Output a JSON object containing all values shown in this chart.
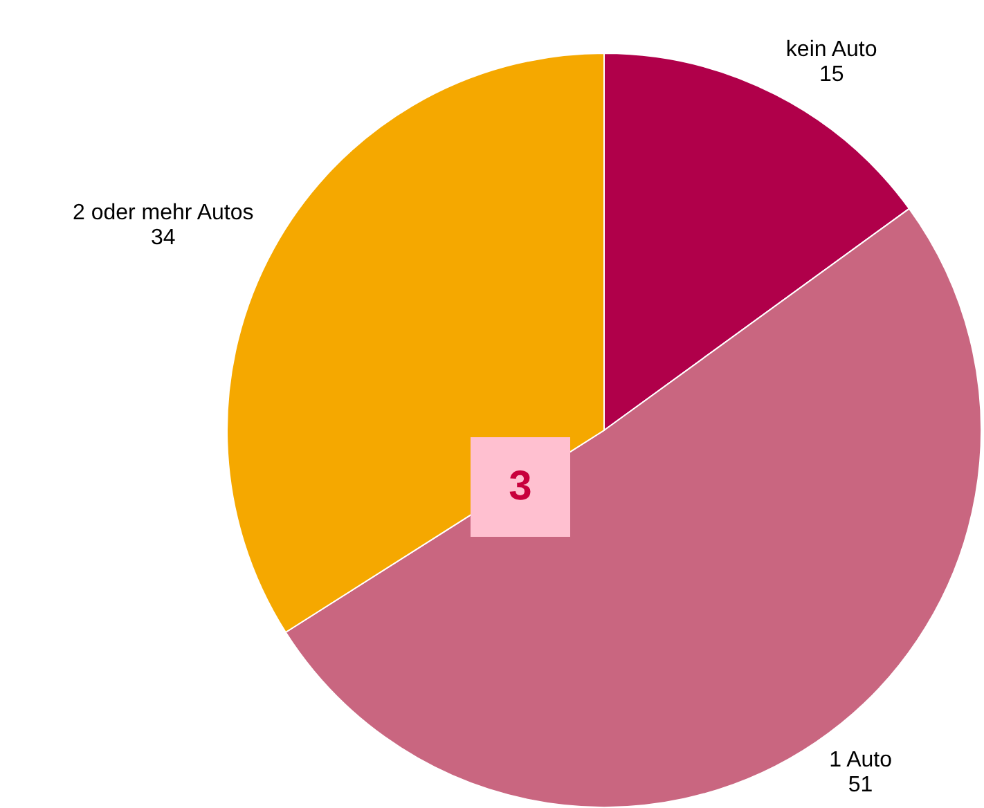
{
  "chart_data": {
    "type": "pie",
    "categories": [
      "kein Auto",
      "1 Auto",
      "2 oder mehr Autos"
    ],
    "values": [
      15,
      51,
      34
    ],
    "colors": [
      "#b0004a",
      "#c96680",
      "#f5a800"
    ],
    "data_labels": true,
    "legend": false,
    "annotations": [
      "3"
    ]
  }
}
